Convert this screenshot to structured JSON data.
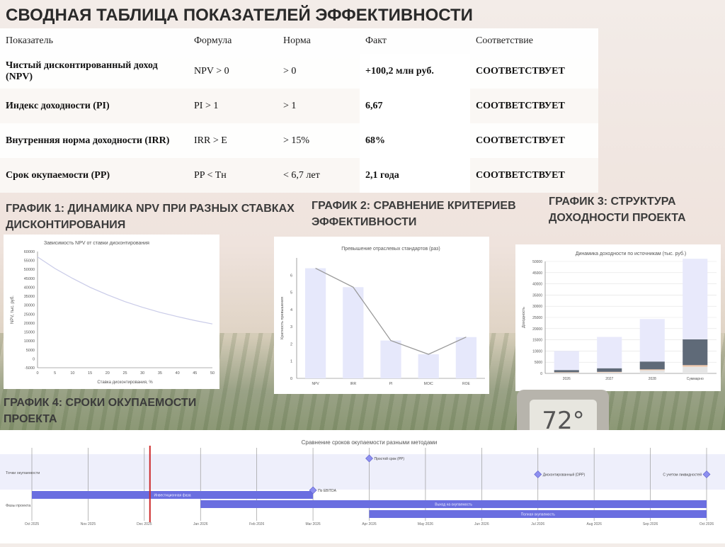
{
  "title": "СВОДНАЯ ТАБЛИЦА ПОКАЗАТЕЛЕЙ ЭФФЕКТИВНОСТИ",
  "table": {
    "headers": [
      "Показатель",
      "Формула",
      "Норма",
      "Факт",
      "Соответствие"
    ],
    "rows": [
      {
        "indicator": "Чистый дисконтированный доход (NPV)",
        "formula": "NPV > 0",
        "norm": "> 0",
        "fact": "+100,2 млн руб.",
        "status": "СООТВЕТСТВУЕТ"
      },
      {
        "indicator": "Индекс доходности (PI)",
        "formula": "PI > 1",
        "norm": "> 1",
        "fact": "6,67",
        "status": "СООТВЕТСТВУЕТ"
      },
      {
        "indicator": "Внутренняя норма доходности (IRR)",
        "formula": "IRR > E",
        "norm": "> 15%",
        "fact": "68%",
        "status": "СООТВЕТСТВУЕТ"
      },
      {
        "indicator": "Срок окупаемости (PP)",
        "formula": "PP < Tн",
        "norm": "< 6,7 лет",
        "fact": "2,1 года",
        "status": "СООТВЕТСТВУЕТ"
      }
    ]
  },
  "captions": {
    "g1": "ГРАФИК 1: ДИНАМИКА NPV ПРИ РАЗНЫХ СТАВКАХ ДИСКОНТИРОВАНИЯ",
    "g2": "ГРАФИК 2: СРАВНЕНИЕ КРИТЕРИЕВ ЭФФЕКТИВНОСТИ",
    "g3": "ГРАФИК 3: СТРУКТУРА ДОХОДНОСТИ ПРОЕКТА",
    "g4": "ГРАФИК 4: СРОКИ ОКУПАЕМОСТИ ПРОЕКТА"
  },
  "thermometer_reading": "72°",
  "chart_data": [
    {
      "type": "line",
      "title": "Зависимость NPV от ставки дисконтирования",
      "xlabel": "Ставка дисконтирования, %",
      "ylabel": "NPV, тыс. руб.",
      "xlim": [
        0,
        50
      ],
      "ylim": [
        -5000,
        60000
      ],
      "xticks": [
        0,
        5,
        10,
        15,
        20,
        25,
        30,
        35,
        40,
        45,
        50
      ],
      "yticks": [
        -5000,
        0,
        5000,
        10000,
        15000,
        20000,
        25000,
        30000,
        35000,
        40000,
        45000,
        50000,
        55000,
        60000
      ],
      "x": [
        0,
        5,
        10,
        15,
        20,
        25,
        30,
        35,
        40,
        45,
        50
      ],
      "y": [
        57000,
        50500,
        45000,
        40000,
        35800,
        32000,
        28800,
        26000,
        23600,
        21400,
        19500
      ],
      "line_color": "#c9cbe8",
      "grid": false
    },
    {
      "type": "bar",
      "title": "Превышение отраслевых стандартов (раз)",
      "ylabel": "Кратность превышения",
      "categories": [
        "NPV",
        "IRR",
        "PI",
        "MOIC",
        "ROE"
      ],
      "values": [
        6.4,
        5.3,
        2.2,
        1.4,
        2.4
      ],
      "ylim": [
        0,
        7
      ],
      "yticks": [
        0,
        1,
        2,
        3,
        4,
        5,
        6
      ],
      "bar_color": "#e6e8fb",
      "line_color": "#9a9a9a",
      "grid": false
    },
    {
      "type": "bar",
      "title": "Динамика доходности по источникам (тыс. руб.)",
      "ylabel": "Доходность",
      "categories": [
        "2026",
        "2027",
        "2028",
        "Суммарно"
      ],
      "series": [
        {
          "values": [
            300,
            450,
            1400,
            3000
          ],
          "color": "#e5e5e5"
        },
        {
          "values": [
            200,
            250,
            400,
            700
          ],
          "color": "#f2c7a8"
        },
        {
          "values": [
            1000,
            1600,
            3500,
            11500
          ],
          "color": "#5f6a78"
        },
        {
          "values": [
            8500,
            14000,
            19000,
            36000
          ],
          "color": "#e8e9fb"
        }
      ],
      "stacked": true,
      "ylim": [
        0,
        50000
      ],
      "yticks": [
        0,
        5000,
        10000,
        15000,
        20000,
        25000,
        30000,
        35000,
        40000,
        45000,
        50000
      ],
      "grid": true
    },
    {
      "type": "timeline",
      "title": "Сравнение сроков окупаемости разными методами",
      "rows": [
        "Точки окупаемости",
        "Фазы проекта"
      ],
      "ticks": [
        "Oct 2025",
        "Nov 2025",
        "Dec 2025",
        "Jan 2026",
        "Feb 2026",
        "Mar 2026",
        "Apr 2026",
        "May 2026",
        "Jun 2026",
        "Jul 2026",
        "Aug 2026",
        "Sep 2026",
        "Oct 2026"
      ],
      "marker_month_index": 2.1,
      "milestones": [
        {
          "label": "По EBITDA",
          "month_index": 5.0,
          "row": 0.6
        },
        {
          "label": "Простой срок (PP)",
          "month_index": 6.0,
          "row": 0
        },
        {
          "label": "Дисконтированный (DPP)",
          "month_index": 9.0,
          "row": 0.3
        },
        {
          "label": "С учетом ликвидностей",
          "month_index": 12.0,
          "row": 0.3
        }
      ],
      "phases": [
        {
          "label": "Инвестиционная фаза",
          "start": 0.0,
          "end": 5.0
        },
        {
          "label": "Выход на окупаемость",
          "start": 3.0,
          "end": 12.0
        },
        {
          "label": "Полная окупаемость",
          "start": 6.0,
          "end": 12.0
        }
      ],
      "phase_color": "#6a6ee0",
      "milestone_color": "#8d8ff0",
      "marker_color": "#cc2a2a"
    }
  ]
}
